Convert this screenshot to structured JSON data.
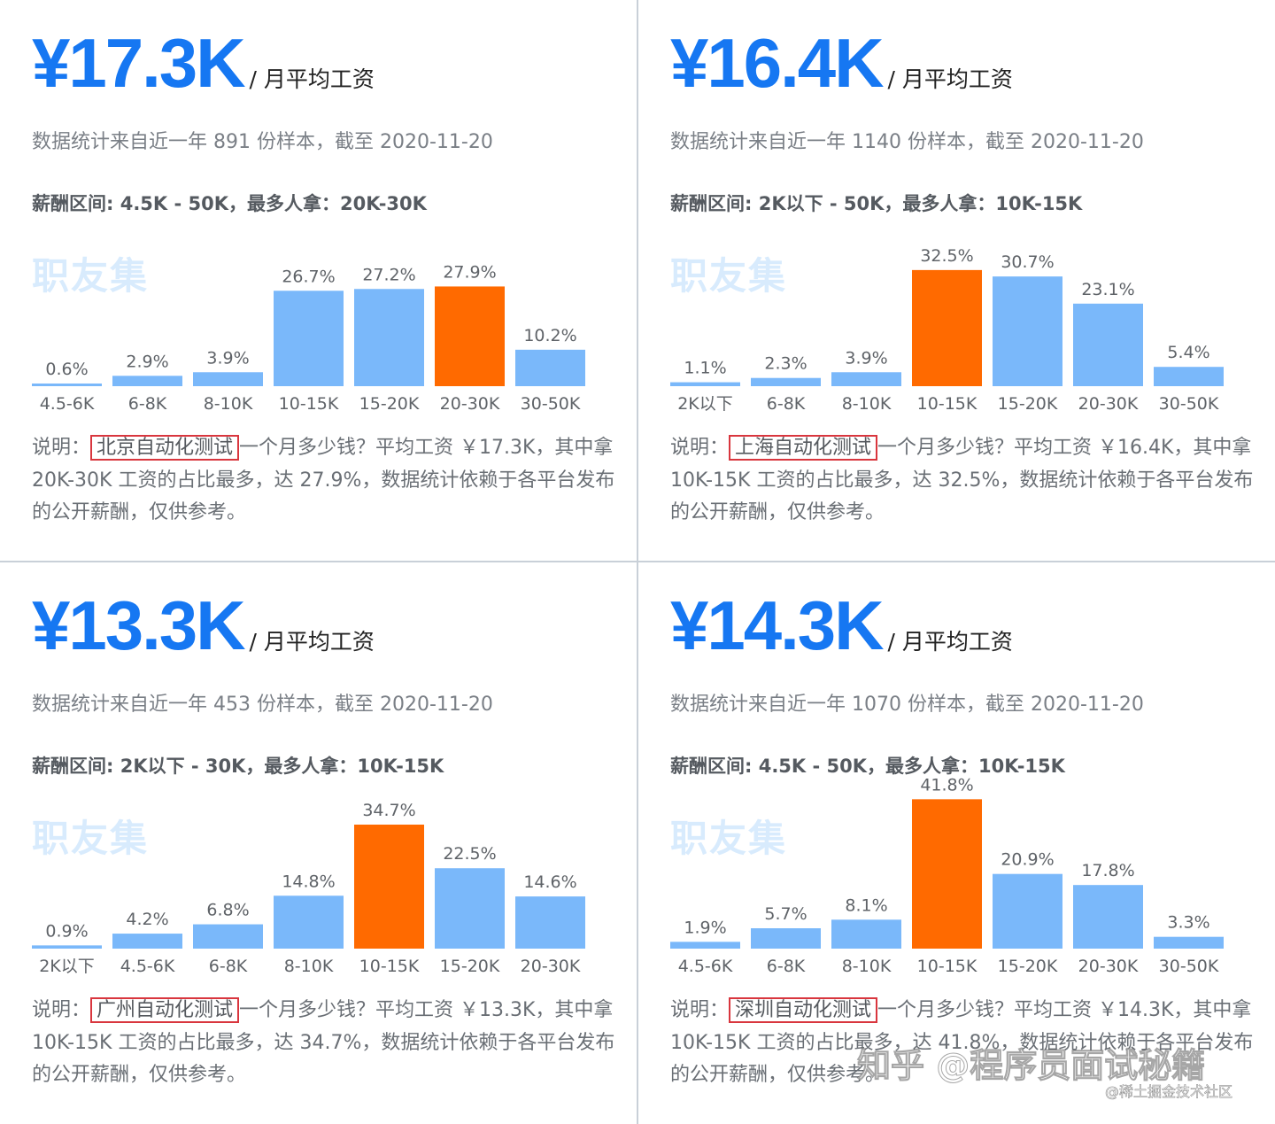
{
  "panels": [
    {
      "amount": "¥17.3K",
      "unit": "/ 月平均工资",
      "sample_text": "数据统计来自近一年 891 份样本，截至 2020-11-20",
      "range_text": "薪酬区间: 4.5K - 50K，最多人拿：20K-30K",
      "watermark": "职友集",
      "desc_prefix": "说明：",
      "city_label": "北京自动化测试",
      "desc_rest": "一个月多少钱？平均工资 ￥17.3K，其中拿 20K-30K 工资的占比最多，达 27.9%，数据统计依赖于各平台发布的公开薪酬，仅供参考。"
    },
    {
      "amount": "¥16.4K",
      "unit": "/ 月平均工资",
      "sample_text": "数据统计来自近一年 1140 份样本，截至 2020-11-20",
      "range_text": "薪酬区间: 2K以下 - 50K，最多人拿：10K-15K",
      "watermark": "职友集",
      "desc_prefix": "说明：",
      "city_label": "上海自动化测试",
      "desc_rest": "一个月多少钱？平均工资 ￥16.4K，其中拿 10K-15K 工资的占比最多，达 32.5%，数据统计依赖于各平台发布的公开薪酬，仅供参考。"
    },
    {
      "amount": "¥13.3K",
      "unit": "/ 月平均工资",
      "sample_text": "数据统计来自近一年 453 份样本，截至 2020-11-20",
      "range_text": "薪酬区间: 2K以下 - 30K，最多人拿：10K-15K",
      "watermark": "职友集",
      "desc_prefix": "说明：",
      "city_label": "广州自动化测试",
      "desc_rest": "一个月多少钱？平均工资 ￥13.3K，其中拿 10K-15K 工资的占比最多，达 34.7%，数据统计依赖于各平台发布的公开薪酬，仅供参考。"
    },
    {
      "amount": "¥14.3K",
      "unit": "/ 月平均工资",
      "sample_text": "数据统计来自近一年 1070 份样本，截至 2020-11-20",
      "range_text": "薪酬区间: 4.5K - 50K，最多人拿：10K-15K",
      "watermark": "职友集",
      "desc_prefix": "说明：",
      "city_label": "深圳自动化测试",
      "desc_rest": "一个月多少钱？平均工资 ￥14.3K，其中拿 10K-15K 工资的占比最多，达 41.8%，数据统计依赖于各平台发布的公开薪酬，仅供参考。"
    }
  ],
  "colors": {
    "bar": "#7ab8fa",
    "highlight": "#ff6a00",
    "accent": "#1677f2"
  },
  "overlay": {
    "zhihu": "知乎 @程序员面试秘籍",
    "juejin": "@稀土掘金技术社区"
  },
  "chart_data": [
    {
      "type": "bar",
      "categories": [
        "4.5-6K",
        "6-8K",
        "8-10K",
        "10-15K",
        "15-20K",
        "20-30K",
        "30-50K"
      ],
      "values": [
        0.6,
        2.9,
        3.9,
        26.7,
        27.2,
        27.9,
        10.2
      ],
      "data_labels": [
        "0.6%",
        "2.9%",
        "3.9%",
        "26.7%",
        "27.2%",
        "27.9%",
        "10.2%"
      ],
      "highlight_index": 5
    },
    {
      "type": "bar",
      "categories": [
        "2K以下",
        "6-8K",
        "8-10K",
        "10-15K",
        "15-20K",
        "20-30K",
        "30-50K"
      ],
      "values": [
        1.1,
        2.3,
        3.9,
        32.5,
        30.7,
        23.1,
        5.4
      ],
      "data_labels": [
        "1.1%",
        "2.3%",
        "3.9%",
        "32.5%",
        "30.7%",
        "23.1%",
        "5.4%"
      ],
      "highlight_index": 3
    },
    {
      "type": "bar",
      "categories": [
        "2K以下",
        "4.5-6K",
        "6-8K",
        "8-10K",
        "10-15K",
        "15-20K",
        "20-30K"
      ],
      "values": [
        0.9,
        4.2,
        6.8,
        14.8,
        34.7,
        22.5,
        14.6
      ],
      "data_labels": [
        "0.9%",
        "4.2%",
        "6.8%",
        "14.8%",
        "34.7%",
        "22.5%",
        "14.6%"
      ],
      "highlight_index": 4
    },
    {
      "type": "bar",
      "categories": [
        "4.5-6K",
        "6-8K",
        "8-10K",
        "10-15K",
        "15-20K",
        "20-30K",
        "30-50K"
      ],
      "values": [
        1.9,
        5.7,
        8.1,
        41.8,
        20.9,
        17.8,
        3.3
      ],
      "data_labels": [
        "1.9%",
        "5.7%",
        "8.1%",
        "41.8%",
        "20.9%",
        "17.8%",
        "3.3%"
      ],
      "highlight_index": 3
    }
  ]
}
